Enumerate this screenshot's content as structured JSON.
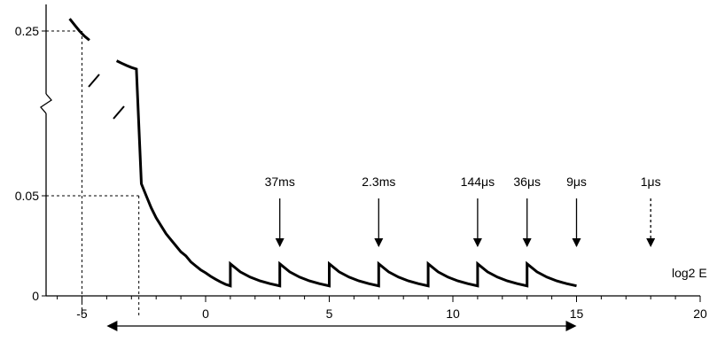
{
  "chart_data": {
    "type": "line",
    "title": "",
    "xlabel": "log2 E",
    "ylabel": "",
    "xlim": [
      -6.5,
      20
    ],
    "x_ticks": [
      -5,
      0,
      5,
      10,
      15,
      20
    ],
    "x_tick_labels": [
      "-5",
      "0",
      "5",
      "10",
      "15",
      "20"
    ],
    "y_ticks": [
      0,
      0.05,
      0.25
    ],
    "y_tick_labels": [
      "0",
      "0.05",
      "0.25"
    ],
    "y_axis_break": true,
    "grid": false,
    "legend": "none",
    "series": [
      {
        "x": [
          -5.5,
          -5.3,
          -5.1,
          -4.9,
          -4.7
        ],
        "y": [
          0.31,
          0.28,
          0.25,
          0.225,
          0.205
        ]
      },
      {
        "x": [
          -3.6,
          -3.4,
          -3.2,
          -3.0,
          -2.8,
          -2.6,
          -2.4,
          -2.2,
          -2.0,
          -1.8,
          -1.6,
          -1.4,
          -1.2,
          -1.0,
          -0.8,
          -0.6,
          -0.4,
          -0.2,
          0.0,
          0.2,
          0.4,
          0.6,
          0.8,
          1.0,
          1.0,
          1.4,
          1.8,
          2.2,
          2.6,
          3.0,
          3.0,
          3.4,
          3.8,
          4.2,
          4.6,
          5.0,
          5.0,
          5.4,
          5.8,
          6.2,
          6.6,
          7.0,
          7.0,
          7.4,
          7.8,
          8.2,
          8.6,
          9.0,
          9.0,
          9.4,
          9.8,
          10.2,
          10.6,
          11.0,
          11.0,
          11.4,
          11.8,
          12.2,
          12.6,
          13.0,
          13.0,
          13.4,
          13.8,
          14.2,
          14.6,
          15.0
        ],
        "y": [
          0.104,
          0.092,
          0.081,
          0.071,
          0.063,
          0.056,
          0.05,
          0.044,
          0.039,
          0.035,
          0.031,
          0.028,
          0.025,
          0.022,
          0.02,
          0.017,
          0.015,
          0.013,
          0.0115,
          0.0098,
          0.0083,
          0.007,
          0.0058,
          0.005,
          0.016,
          0.012,
          0.0094,
          0.0075,
          0.0061,
          0.005,
          0.016,
          0.012,
          0.0094,
          0.0075,
          0.0061,
          0.005,
          0.016,
          0.012,
          0.0094,
          0.0075,
          0.0061,
          0.005,
          0.016,
          0.012,
          0.0094,
          0.0075,
          0.0061,
          0.005,
          0.016,
          0.012,
          0.0094,
          0.0075,
          0.0061,
          0.005,
          0.016,
          0.012,
          0.0094,
          0.0075,
          0.0061,
          0.005,
          0.016,
          0.012,
          0.0094,
          0.0075,
          0.0061,
          0.005
        ]
      }
    ],
    "reference_lines": [
      {
        "x": -5,
        "y": 0.25
      },
      {
        "x": -2.7,
        "y": 0.05
      }
    ],
    "annotations": [
      {
        "text": "37ms",
        "x": 3,
        "dashed": false
      },
      {
        "text": "2.3ms",
        "x": 7,
        "dashed": false
      },
      {
        "text": "144μs",
        "x": 11,
        "dashed": false
      },
      {
        "text": "36μs",
        "x": 13,
        "dashed": false
      },
      {
        "text": "9μs",
        "x": 15,
        "dashed": false
      },
      {
        "text": "1μs",
        "x": 18,
        "dashed": true
      }
    ],
    "range_arrow": [
      -4,
      15
    ]
  }
}
